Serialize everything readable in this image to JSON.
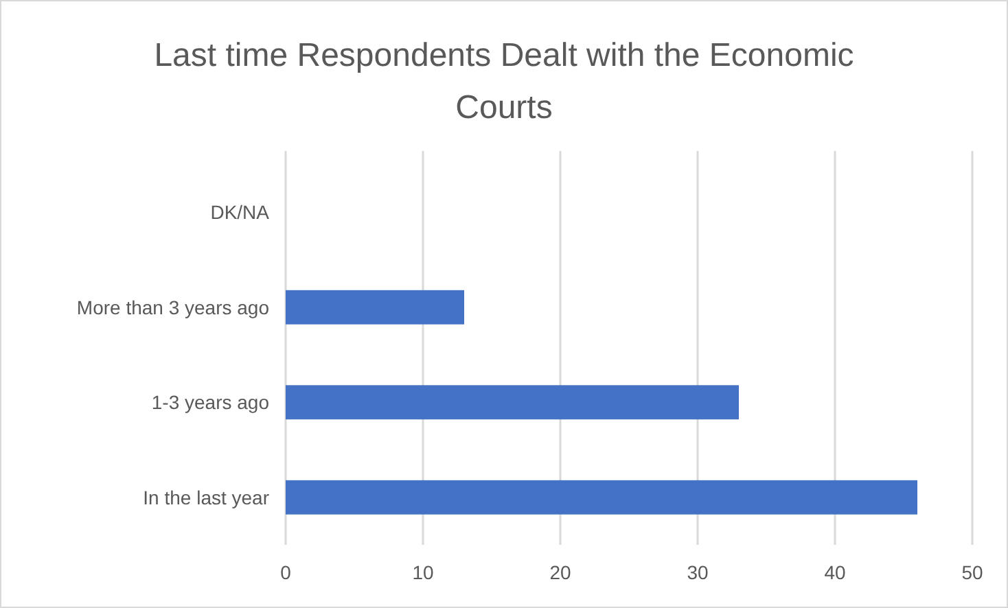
{
  "chart_data": {
    "type": "bar",
    "orientation": "horizontal",
    "title": "Last time Respondents Dealt with the Economic Courts",
    "categories": [
      "DK/NA",
      "More than 3 years ago",
      "1-3 years ago",
      "In the last year"
    ],
    "values": [
      0,
      13,
      33,
      46
    ],
    "color": "#4472c4",
    "xlim": [
      0,
      50
    ],
    "xticks": [
      0,
      10,
      20,
      30,
      40,
      50
    ],
    "grid": "x"
  }
}
